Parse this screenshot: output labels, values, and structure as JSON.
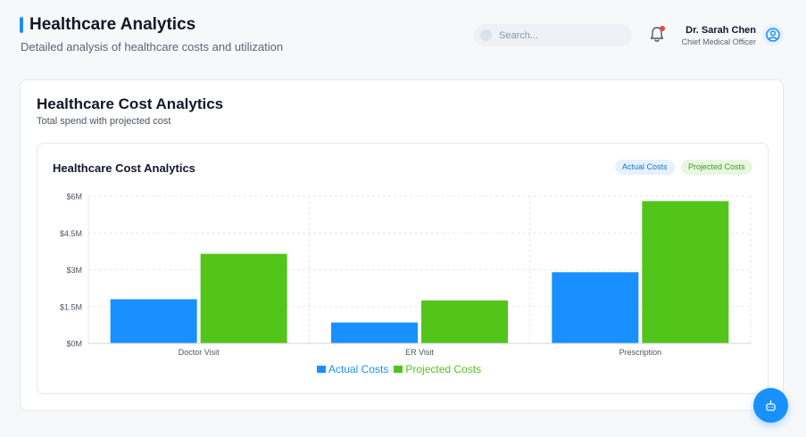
{
  "header": {
    "title": "Healthcare Analytics",
    "subtitle": "Detailed analysis of healthcare costs and utilization",
    "search_placeholder": "Search...",
    "user_name": "Dr. Sarah Chen",
    "user_role": "Chief Medical Officer"
  },
  "card": {
    "title": "Healthcare Cost Analytics",
    "subtitle": "Total spend with projected cost"
  },
  "chart_panel": {
    "title": "Healthcare Cost Analytics",
    "pill_actual": "Actual Costs",
    "pill_projected": "Projected Costs"
  },
  "colors": {
    "actual": "#1890ff",
    "projected": "#52c41a",
    "accent": "#1890ff",
    "notification": "#ef4444"
  },
  "icons": {
    "search": "search-icon",
    "notifications": "bell-icon",
    "profile": "user-circle-icon",
    "assistant": "robot-icon"
  },
  "chart_data": {
    "type": "bar",
    "categories": [
      "Doctor Visit",
      "ER Visit",
      "Prescription"
    ],
    "series": [
      {
        "name": "Actual Costs",
        "values": [
          1800000,
          850000,
          2900000
        ]
      },
      {
        "name": "Projected Costs",
        "values": [
          3650000,
          1750000,
          5800000
        ]
      }
    ],
    "y_ticks": [
      "$0M",
      "$1.5M",
      "$3M",
      "$4.5M",
      "$6M"
    ],
    "ylim": [
      0,
      6000000
    ],
    "grid": true,
    "legend_position": "bottom"
  }
}
